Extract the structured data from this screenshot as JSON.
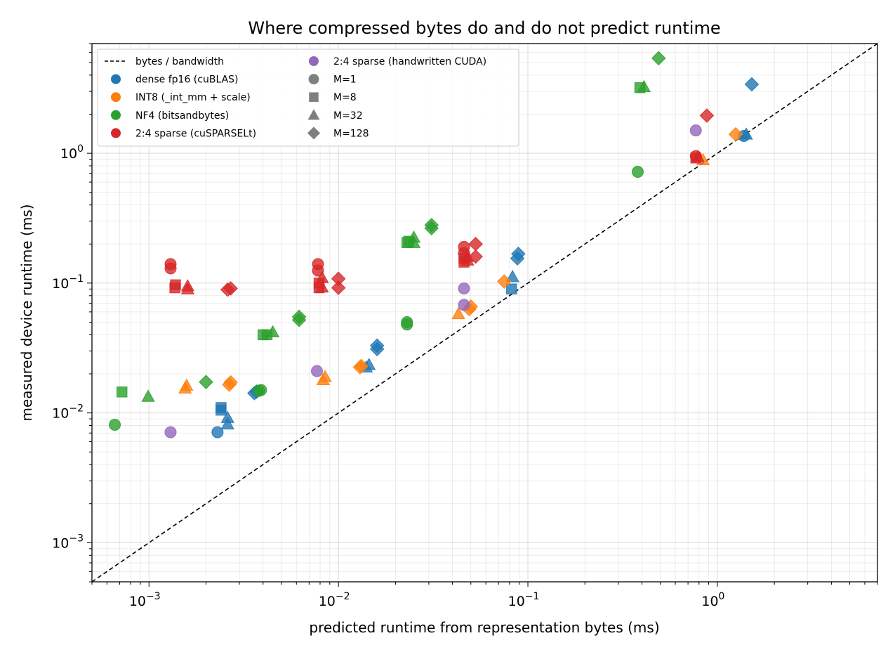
{
  "chart_data": {
    "type": "scatter",
    "title": "Where compressed bytes do and do not predict runtime",
    "xlabel": "predicted runtime from representation bytes (ms)",
    "ylabel": "measured device runtime (ms)",
    "xscale": "log",
    "yscale": "log",
    "xlim": [
      0.0005,
      7
    ],
    "ylim": [
      0.0005,
      7
    ],
    "grid": "both-major-minor",
    "legend_position": "top-left",
    "x_ticks": [
      {
        "base": "10",
        "exp": "−3",
        "value": 0.001
      },
      {
        "base": "10",
        "exp": "−2",
        "value": 0.01
      },
      {
        "base": "10",
        "exp": "−1",
        "value": 0.1
      },
      {
        "base": "10",
        "exp": "0",
        "value": 1
      }
    ],
    "y_ticks": [
      {
        "base": "10",
        "exp": "−3",
        "value": 0.001
      },
      {
        "base": "10",
        "exp": "−2",
        "value": 0.01
      },
      {
        "base": "10",
        "exp": "−1",
        "value": 0.1
      },
      {
        "base": "10",
        "exp": "0",
        "value": 1
      }
    ],
    "reference_line": {
      "label": "bytes / bandwidth",
      "style": "dashed",
      "color": "#000000"
    },
    "series": [
      {
        "name": "dense fp16 (cuBLAS)",
        "color": "#1f77b4",
        "points": [
          {
            "x": 0.0023,
            "y": 0.0071,
            "m": "M=1"
          },
          {
            "x": 0.0024,
            "y": 0.0105,
            "m": "M=8"
          },
          {
            "x": 0.0024,
            "y": 0.011,
            "m": "M=8"
          },
          {
            "x": 0.0026,
            "y": 0.0082,
            "m": "M=32"
          },
          {
            "x": 0.0026,
            "y": 0.0092,
            "m": "M=32"
          },
          {
            "x": 0.0036,
            "y": 0.0142,
            "m": "M=128"
          },
          {
            "x": 0.0037,
            "y": 0.0146,
            "m": "M=128"
          },
          {
            "x": 0.014,
            "y": 0.0225,
            "m": "M=32"
          },
          {
            "x": 0.0145,
            "y": 0.0235,
            "m": "M=32"
          },
          {
            "x": 0.016,
            "y": 0.031,
            "m": "M=128"
          },
          {
            "x": 0.016,
            "y": 0.033,
            "m": "M=128"
          },
          {
            "x": 0.082,
            "y": 0.09,
            "m": "M=8"
          },
          {
            "x": 0.083,
            "y": 0.112,
            "m": "M=32"
          },
          {
            "x": 0.088,
            "y": 0.155,
            "m": "M=128"
          },
          {
            "x": 0.089,
            "y": 0.168,
            "m": "M=128"
          },
          {
            "x": 1.38,
            "y": 1.36,
            "m": "M=1"
          },
          {
            "x": 1.42,
            "y": 1.4,
            "m": "M=32"
          },
          {
            "x": 1.52,
            "y": 3.4,
            "m": "M=128"
          }
        ]
      },
      {
        "name": "INT8 (_int_mm + scale)",
        "color": "#ff7f0e",
        "points": [
          {
            "x": 0.00155,
            "y": 0.0155,
            "m": "M=32"
          },
          {
            "x": 0.00158,
            "y": 0.0163,
            "m": "M=32"
          },
          {
            "x": 0.00265,
            "y": 0.0165,
            "m": "M=128"
          },
          {
            "x": 0.0027,
            "y": 0.0172,
            "m": "M=128"
          },
          {
            "x": 0.0083,
            "y": 0.018,
            "m": "M=32"
          },
          {
            "x": 0.0085,
            "y": 0.019,
            "m": "M=32"
          },
          {
            "x": 0.013,
            "y": 0.0225,
            "m": "M=128"
          },
          {
            "x": 0.0132,
            "y": 0.023,
            "m": "M=128"
          },
          {
            "x": 0.043,
            "y": 0.058,
            "m": "M=32"
          },
          {
            "x": 0.049,
            "y": 0.063,
            "m": "M=128"
          },
          {
            "x": 0.05,
            "y": 0.066,
            "m": "M=128"
          },
          {
            "x": 0.075,
            "y": 0.103,
            "m": "M=128"
          },
          {
            "x": 0.84,
            "y": 0.89,
            "m": "M=32"
          },
          {
            "x": 1.25,
            "y": 1.4,
            "m": "M=128"
          }
        ]
      },
      {
        "name": "NF4 (bitsandbytes)",
        "color": "#2ca02c",
        "points": [
          {
            "x": 0.00066,
            "y": 0.0081,
            "m": "M=1"
          },
          {
            "x": 0.00072,
            "y": 0.0145,
            "m": "M=8"
          },
          {
            "x": 0.00099,
            "y": 0.0134,
            "m": "M=32"
          },
          {
            "x": 0.002,
            "y": 0.0173,
            "m": "M=128"
          },
          {
            "x": 0.0038,
            "y": 0.0148,
            "m": "M=1"
          },
          {
            "x": 0.0039,
            "y": 0.015,
            "m": "M=1"
          },
          {
            "x": 0.004,
            "y": 0.04,
            "m": "M=8"
          },
          {
            "x": 0.0042,
            "y": 0.04,
            "m": "M=8"
          },
          {
            "x": 0.0045,
            "y": 0.042,
            "m": "M=32"
          },
          {
            "x": 0.0062,
            "y": 0.052,
            "m": "M=128"
          },
          {
            "x": 0.0062,
            "y": 0.055,
            "m": "M=128"
          },
          {
            "x": 0.023,
            "y": 0.048,
            "m": "M=1"
          },
          {
            "x": 0.023,
            "y": 0.05,
            "m": "M=1"
          },
          {
            "x": 0.023,
            "y": 0.205,
            "m": "M=8"
          },
          {
            "x": 0.0235,
            "y": 0.21,
            "m": "M=8"
          },
          {
            "x": 0.025,
            "y": 0.205,
            "m": "M=32"
          },
          {
            "x": 0.025,
            "y": 0.225,
            "m": "M=32"
          },
          {
            "x": 0.031,
            "y": 0.265,
            "m": "M=128"
          },
          {
            "x": 0.031,
            "y": 0.28,
            "m": "M=128"
          },
          {
            "x": 0.38,
            "y": 0.72,
            "m": "M=1"
          },
          {
            "x": 0.39,
            "y": 3.2,
            "m": "M=8"
          },
          {
            "x": 0.41,
            "y": 3.25,
            "m": "M=32"
          },
          {
            "x": 0.49,
            "y": 5.4,
            "m": "M=128"
          }
        ]
      },
      {
        "name": "2:4 sparse (cuSPARSELt)",
        "color": "#d62728",
        "points": [
          {
            "x": 0.0013,
            "y": 0.13,
            "m": "M=1"
          },
          {
            "x": 0.0013,
            "y": 0.14,
            "m": "M=1"
          },
          {
            "x": 0.00137,
            "y": 0.092,
            "m": "M=8"
          },
          {
            "x": 0.00138,
            "y": 0.097,
            "m": "M=8"
          },
          {
            "x": 0.0016,
            "y": 0.09,
            "m": "M=32"
          },
          {
            "x": 0.0016,
            "y": 0.095,
            "m": "M=32"
          },
          {
            "x": 0.0026,
            "y": 0.089,
            "m": "M=128"
          },
          {
            "x": 0.0027,
            "y": 0.091,
            "m": "M=128"
          },
          {
            "x": 0.0078,
            "y": 0.125,
            "m": "M=1"
          },
          {
            "x": 0.0078,
            "y": 0.14,
            "m": "M=1"
          },
          {
            "x": 0.0079,
            "y": 0.092,
            "m": "M=8"
          },
          {
            "x": 0.0079,
            "y": 0.1,
            "m": "M=8"
          },
          {
            "x": 0.0082,
            "y": 0.093,
            "m": "M=32"
          },
          {
            "x": 0.0082,
            "y": 0.11,
            "m": "M=32"
          },
          {
            "x": 0.01,
            "y": 0.092,
            "m": "M=128"
          },
          {
            "x": 0.01,
            "y": 0.108,
            "m": "M=128"
          },
          {
            "x": 0.046,
            "y": 0.17,
            "m": "M=1"
          },
          {
            "x": 0.046,
            "y": 0.19,
            "m": "M=1"
          },
          {
            "x": 0.046,
            "y": 0.145,
            "m": "M=8"
          },
          {
            "x": 0.046,
            "y": 0.155,
            "m": "M=8"
          },
          {
            "x": 0.048,
            "y": 0.15,
            "m": "M=32"
          },
          {
            "x": 0.048,
            "y": 0.16,
            "m": "M=32"
          },
          {
            "x": 0.053,
            "y": 0.16,
            "m": "M=128"
          },
          {
            "x": 0.053,
            "y": 0.2,
            "m": "M=128"
          },
          {
            "x": 0.77,
            "y": 0.95,
            "m": "M=1"
          },
          {
            "x": 0.77,
            "y": 0.92,
            "m": "M=8"
          },
          {
            "x": 0.79,
            "y": 0.94,
            "m": "M=32"
          },
          {
            "x": 0.88,
            "y": 1.95,
            "m": "M=128"
          }
        ]
      },
      {
        "name": "2:4 sparse (handwritten CUDA)",
        "color": "#9467bd",
        "points": [
          {
            "x": 0.0013,
            "y": 0.0071,
            "m": "M=1"
          },
          {
            "x": 0.0077,
            "y": 0.021,
            "m": "M=1"
          },
          {
            "x": 0.046,
            "y": 0.068,
            "m": "M=1"
          },
          {
            "x": 0.046,
            "y": 0.091,
            "m": "M=1"
          },
          {
            "x": 0.77,
            "y": 1.5,
            "m": "M=1"
          }
        ]
      }
    ],
    "marker_legend": [
      {
        "name": "M=1",
        "shape": "circle"
      },
      {
        "name": "M=8",
        "shape": "square"
      },
      {
        "name": "M=32",
        "shape": "triangle"
      },
      {
        "name": "M=128",
        "shape": "diamond"
      }
    ]
  }
}
